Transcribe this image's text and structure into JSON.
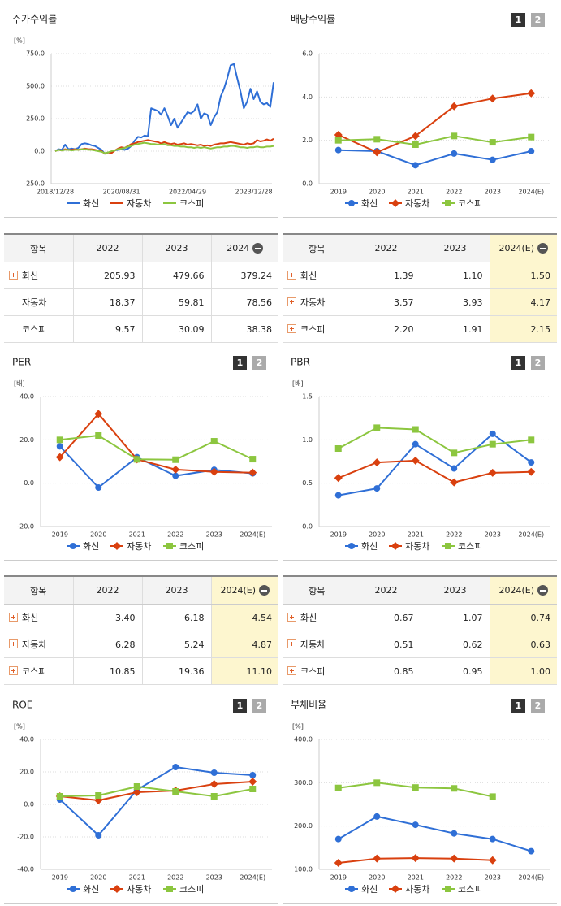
{
  "chart_data": [
    {
      "type": "line",
      "title": "주가수익률",
      "y_unit": "[%]",
      "grid": true,
      "ylim": [
        -250,
        750
      ],
      "yticks": [
        {
          "value": -250,
          "label": "-250.0"
        },
        {
          "value": 0,
          "label": "0.0"
        },
        {
          "value": 250,
          "label": "250.0"
        },
        {
          "value": 500,
          "label": "500.0"
        },
        {
          "value": 750,
          "label": "750.0"
        }
      ],
      "categories": [
        "2018/12/28",
        null,
        null,
        null,
        null,
        null,
        null,
        null,
        null,
        null,
        null,
        null,
        null,
        null,
        null,
        null,
        null,
        null,
        null,
        null,
        "2020/08/31",
        null,
        null,
        null,
        null,
        null,
        null,
        null,
        null,
        null,
        null,
        null,
        null,
        null,
        null,
        null,
        null,
        null,
        null,
        null,
        "2022/04/29",
        null,
        null,
        null,
        null,
        null,
        null,
        null,
        null,
        null,
        null,
        null,
        null,
        null,
        null,
        null,
        null,
        null,
        null,
        null,
        "2023/12/28",
        null,
        null,
        null,
        null,
        null,
        null
      ],
      "series": [
        {
          "name": "화신",
          "color": "#2f6fd6",
          "values": [
            0,
            15,
            10,
            50,
            15,
            20,
            15,
            25,
            55,
            60,
            55,
            45,
            40,
            25,
            10,
            -20,
            -10,
            -5,
            5,
            10,
            15,
            10,
            20,
            40,
            80,
            110,
            105,
            120,
            115,
            330,
            320,
            310,
            280,
            330,
            270,
            200,
            250,
            180,
            220,
            260,
            300,
            290,
            310,
            360,
            250,
            290,
            280,
            200,
            260,
            300,
            420,
            480,
            560,
            660,
            670,
            560,
            460,
            330,
            380,
            480,
            400,
            460,
            380,
            360,
            370,
            340,
            530
          ]
        },
        {
          "name": "자동차",
          "color": "#d9400f",
          "values": [
            0,
            10,
            5,
            15,
            10,
            10,
            15,
            10,
            15,
            20,
            15,
            15,
            10,
            5,
            0,
            -20,
            -10,
            -15,
            5,
            20,
            30,
            25,
            40,
            55,
            60,
            70,
            75,
            80,
            85,
            80,
            75,
            70,
            60,
            70,
            60,
            55,
            60,
            50,
            55,
            60,
            50,
            55,
            50,
            45,
            50,
            40,
            45,
            40,
            50,
            55,
            60,
            60,
            65,
            70,
            65,
            60,
            55,
            50,
            60,
            55,
            60,
            85,
            75,
            80,
            90,
            80,
            95
          ]
        },
        {
          "name": "코스피",
          "color": "#8cc63f",
          "values": [
            0,
            10,
            5,
            10,
            10,
            5,
            10,
            10,
            15,
            15,
            10,
            10,
            5,
            0,
            -5,
            -15,
            -10,
            0,
            5,
            15,
            20,
            25,
            35,
            40,
            50,
            55,
            60,
            65,
            60,
            55,
            55,
            50,
            50,
            55,
            45,
            45,
            40,
            40,
            35,
            35,
            30,
            30,
            25,
            30,
            25,
            30,
            25,
            20,
            25,
            30,
            30,
            35,
            35,
            40,
            40,
            35,
            30,
            30,
            25,
            30,
            30,
            35,
            30,
            30,
            35,
            35,
            40
          ]
        }
      ]
    },
    {
      "type": "line",
      "title": "배당수익률",
      "pages": [
        "1",
        "2"
      ],
      "grid": true,
      "ylim": [
        0,
        6
      ],
      "yticks": [
        {
          "value": 0,
          "label": "0.0"
        },
        {
          "value": 2,
          "label": "2.0"
        },
        {
          "value": 4,
          "label": "4.0"
        },
        {
          "value": 6,
          "label": "6.0"
        }
      ],
      "categories": [
        "2019",
        "2020",
        "2021",
        "2022",
        "2023",
        "2024(E)"
      ],
      "series": [
        {
          "name": "화신",
          "color": "#2f6fd6",
          "marker": "circle",
          "values": [
            1.55,
            1.5,
            0.85,
            1.39,
            1.1,
            1.5
          ]
        },
        {
          "name": "자동차",
          "color": "#d9400f",
          "marker": "diamond",
          "values": [
            2.25,
            1.45,
            2.2,
            3.57,
            3.93,
            4.17
          ]
        },
        {
          "name": "코스피",
          "color": "#8cc63f",
          "marker": "square",
          "values": [
            2.0,
            2.05,
            1.8,
            2.2,
            1.91,
            2.15
          ]
        }
      ]
    },
    {
      "type": "line",
      "title": "PER",
      "pages": [
        "1",
        "2"
      ],
      "y_unit": "[배]",
      "grid": true,
      "ylim": [
        -20,
        40
      ],
      "yticks": [
        {
          "value": -20,
          "label": "-20.0"
        },
        {
          "value": 0,
          "label": "0.0"
        },
        {
          "value": 20,
          "label": "20.0"
        },
        {
          "value": 40,
          "label": "40.0"
        }
      ],
      "categories": [
        "2019",
        "2020",
        "2021",
        "2022",
        "2023",
        "2024(E)"
      ],
      "series": [
        {
          "name": "화신",
          "color": "#2f6fd6",
          "marker": "circle",
          "values": [
            17,
            -2,
            12,
            3.4,
            6.18,
            4.54
          ]
        },
        {
          "name": "자동차",
          "color": "#d9400f",
          "marker": "diamond",
          "values": [
            12,
            32,
            11,
            6.28,
            5.24,
            4.87
          ]
        },
        {
          "name": "코스피",
          "color": "#8cc63f",
          "marker": "square",
          "values": [
            20,
            22,
            11,
            10.85,
            19.36,
            11.1
          ]
        }
      ]
    },
    {
      "type": "line",
      "title": "PBR",
      "pages": [
        "1",
        "2"
      ],
      "y_unit": "[배]",
      "grid": true,
      "ylim": [
        0,
        1.5
      ],
      "yticks": [
        {
          "value": 0,
          "label": "0.0"
        },
        0.5,
        {
          "value": 1,
          "label": "1.0"
        },
        1.5
      ],
      "categories": [
        "2019",
        "2020",
        "2021",
        "2022",
        "2023",
        "2024(E)"
      ],
      "series": [
        {
          "name": "화신",
          "color": "#2f6fd6",
          "marker": "circle",
          "values": [
            0.36,
            0.44,
            0.95,
            0.67,
            1.07,
            0.74
          ]
        },
        {
          "name": "자동차",
          "color": "#d9400f",
          "marker": "diamond",
          "values": [
            0.56,
            0.74,
            0.76,
            0.51,
            0.62,
            0.63
          ]
        },
        {
          "name": "코스피",
          "color": "#8cc63f",
          "marker": "square",
          "values": [
            0.9,
            1.14,
            1.12,
            0.85,
            0.95,
            1.0
          ]
        }
      ]
    },
    {
      "type": "line",
      "title": "ROE",
      "pages": [
        "1",
        "2"
      ],
      "y_unit": "[%]",
      "grid": true,
      "ylim": [
        -40,
        40
      ],
      "yticks": [
        {
          "value": -40,
          "label": "-40.0"
        },
        {
          "value": -20,
          "label": "-20.0"
        },
        {
          "value": 0,
          "label": "0.0"
        },
        {
          "value": 20,
          "label": "20.0"
        },
        {
          "value": 40,
          "label": "40.0"
        }
      ],
      "categories": [
        "2019",
        "2020",
        "2021",
        "2022",
        "2023",
        "2024(E)"
      ],
      "series": [
        {
          "name": "화신",
          "color": "#2f6fd6",
          "marker": "circle",
          "values": [
            3,
            -19,
            9,
            23,
            19.5,
            18
          ]
        },
        {
          "name": "자동차",
          "color": "#d9400f",
          "marker": "diamond",
          "values": [
            5,
            2.5,
            7.5,
            8.5,
            12.5,
            14
          ]
        },
        {
          "name": "코스피",
          "color": "#8cc63f",
          "marker": "square",
          "values": [
            5,
            5.5,
            11,
            8,
            5,
            9.5
          ]
        }
      ]
    },
    {
      "type": "line",
      "title": "부채비율",
      "pages": [
        "1",
        "2"
      ],
      "y_unit": "[%]",
      "grid": true,
      "ylim": [
        100,
        400
      ],
      "yticks": [
        {
          "value": 100,
          "label": "100.0"
        },
        {
          "value": 200,
          "label": "200.0"
        },
        {
          "value": 300,
          "label": "300.0"
        },
        {
          "value": 400,
          "label": "400.0"
        }
      ],
      "categories": [
        "2019",
        "2020",
        "2021",
        "2022",
        "2023",
        "2024(E)"
      ],
      "series": [
        {
          "name": "화신",
          "color": "#2f6fd6",
          "marker": "circle",
          "values": [
            170,
            222,
            203,
            183,
            170,
            142
          ]
        },
        {
          "name": "자동차",
          "color": "#d9400f",
          "marker": "diamond",
          "values": [
            115,
            125,
            126,
            125,
            121,
            null
          ]
        },
        {
          "name": "코스피",
          "color": "#8cc63f",
          "marker": "square",
          "values": [
            288,
            300,
            289,
            287,
            268,
            null
          ]
        }
      ]
    }
  ],
  "tables": [
    {
      "header": [
        "항목",
        "2022",
        "2023",
        "2024"
      ],
      "highlight_last": false,
      "rows": [
        {
          "name": "화신",
          "expand": true,
          "cells": [
            "205.93",
            "479.66",
            "379.24"
          ]
        },
        {
          "name": "자동차",
          "expand": false,
          "cells": [
            "18.37",
            "59.81",
            "78.56"
          ]
        },
        {
          "name": "코스피",
          "expand": false,
          "cells": [
            "9.57",
            "30.09",
            "38.38"
          ]
        }
      ]
    },
    {
      "header": [
        "항목",
        "2022",
        "2023",
        "2024(E)"
      ],
      "highlight_last": true,
      "rows": [
        {
          "name": "화신",
          "expand": true,
          "cells": [
            "1.39",
            "1.10",
            "1.50"
          ]
        },
        {
          "name": "자동차",
          "expand": true,
          "cells": [
            "3.57",
            "3.93",
            "4.17"
          ]
        },
        {
          "name": "코스피",
          "expand": true,
          "cells": [
            "2.20",
            "1.91",
            "2.15"
          ]
        }
      ]
    },
    {
      "header": [
        "항목",
        "2022",
        "2023",
        "2024(E)"
      ],
      "highlight_last": true,
      "rows": [
        {
          "name": "화신",
          "expand": true,
          "cells": [
            "3.40",
            "6.18",
            "4.54"
          ]
        },
        {
          "name": "자동차",
          "expand": true,
          "cells": [
            "6.28",
            "5.24",
            "4.87"
          ]
        },
        {
          "name": "코스피",
          "expand": true,
          "cells": [
            "10.85",
            "19.36",
            "11.10"
          ]
        }
      ]
    },
    {
      "header": [
        "항목",
        "2022",
        "2023",
        "2024(E)"
      ],
      "highlight_last": true,
      "rows": [
        {
          "name": "화신",
          "expand": true,
          "cells": [
            "0.67",
            "1.07",
            "0.74"
          ]
        },
        {
          "name": "자동차",
          "expand": true,
          "cells": [
            "0.51",
            "0.62",
            "0.63"
          ]
        },
        {
          "name": "코스피",
          "expand": true,
          "cells": [
            "0.85",
            "0.95",
            "1.00"
          ]
        }
      ]
    }
  ]
}
